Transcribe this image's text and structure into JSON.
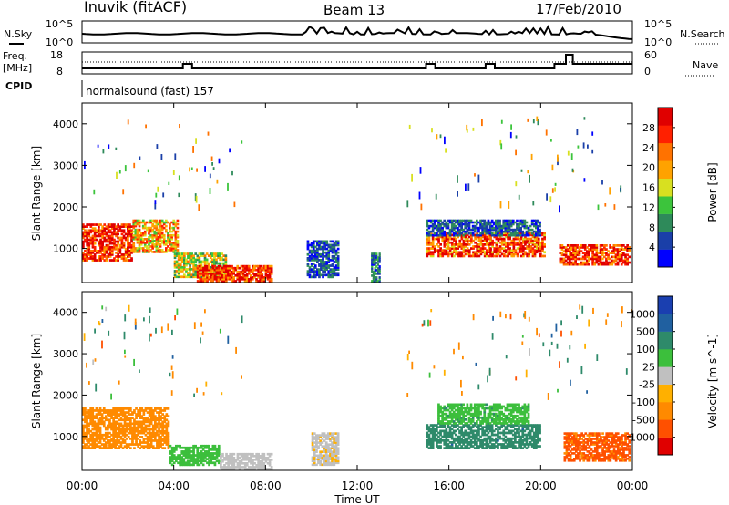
{
  "header": {
    "station": "Inuvik (fitACF)",
    "beam": "Beam 13",
    "date": "17/Feb/2010"
  },
  "aux_panels": {
    "nsky_label": "N.Sky",
    "nsky_ticks": [
      "10^5",
      "10^0"
    ],
    "nsearch_label": "N.Search",
    "nsearch_ticks": [
      "10^5",
      "10^0"
    ],
    "freq_label": "Freq.",
    "freq_unit": "[MHz]",
    "freq_ticks": [
      "18",
      "8"
    ],
    "nave_label": "Nave",
    "nave_ticks": [
      "60",
      "0"
    ],
    "cpid_label": "CPID",
    "cpid_text": "normalsound (fast) 157"
  },
  "colors": {
    "power_scale": [
      "#0000ff",
      "#1a3fa8",
      "#2e8a5a",
      "#3cc43c",
      "#d8e020",
      "#ffa200",
      "#ff7200",
      "#ff2000",
      "#e00000"
    ],
    "velocity_scale": [
      "#1a3fb0",
      "#2060a0",
      "#2e8a6a",
      "#3cbf3c",
      "#c0c0c0",
      "#ffb000",
      "#ff8a00",
      "#ff5000",
      "#e00000"
    ]
  },
  "chart_data": [
    {
      "type": "heatmap",
      "name": "power",
      "ylabel": "Slant Range [km]",
      "xlabel": "",
      "ylim": [
        180,
        4500
      ],
      "y_ticks": [
        "4000",
        "3000",
        "2000",
        "1000"
      ],
      "x_ticks": [
        "00:00",
        "04:00",
        "08:00",
        "12:00",
        "16:00",
        "20:00",
        "00:00"
      ],
      "colorbar_title": "Power [dB]",
      "colorbar_ticks": [
        "28",
        "24",
        "20",
        "16",
        "12",
        "8",
        "4"
      ],
      "series_blobs": [
        {
          "t": [
            0.0,
            2.2
          ],
          "r": [
            700,
            1600
          ],
          "value": 28
        },
        {
          "t": [
            2.2,
            4.2
          ],
          "r": [
            900,
            1700
          ],
          "value": 20
        },
        {
          "t": [
            4.0,
            6.3
          ],
          "r": [
            300,
            900
          ],
          "value": 16
        },
        {
          "t": [
            5.0,
            8.3
          ],
          "r": [
            200,
            600
          ],
          "value": 28
        },
        {
          "t": [
            9.8,
            11.2
          ],
          "r": [
            300,
            1200
          ],
          "value": 6
        },
        {
          "t": [
            12.6,
            13.0
          ],
          "r": [
            200,
            900
          ],
          "value": 8
        },
        {
          "t": [
            15.0,
            20.2
          ],
          "r": [
            800,
            1400
          ],
          "value": 26
        },
        {
          "t": [
            15.0,
            20.0
          ],
          "r": [
            1300,
            1700
          ],
          "value": 6
        },
        {
          "t": [
            20.8,
            23.9
          ],
          "r": [
            600,
            1100
          ],
          "value": 28
        }
      ]
    },
    {
      "type": "heatmap",
      "name": "velocity",
      "ylabel": "Slant Range [km]",
      "xlabel": "Time UT",
      "ylim": [
        180,
        4500
      ],
      "y_ticks": [
        "4000",
        "3000",
        "2000",
        "1000"
      ],
      "x_ticks": [
        "00:00",
        "04:00",
        "08:00",
        "12:00",
        "16:00",
        "20:00",
        "00:00"
      ],
      "colorbar_title": "Velocity [m s^-1]",
      "colorbar_ticks": [
        "1000",
        "500",
        "100",
        "25",
        "-25",
        "-100",
        "-500",
        "-1000"
      ],
      "series_blobs": [
        {
          "t": [
            0.0,
            3.8
          ],
          "r": [
            700,
            1700
          ],
          "value": -300
        },
        {
          "t": [
            3.8,
            6.0
          ],
          "r": [
            300,
            800
          ],
          "value": 60
        },
        {
          "t": [
            6.0,
            8.3
          ],
          "r": [
            200,
            600
          ],
          "value": 10
        },
        {
          "t": [
            10.0,
            11.2
          ],
          "r": [
            300,
            1100
          ],
          "value": -20
        },
        {
          "t": [
            15.0,
            20.0
          ],
          "r": [
            700,
            1300
          ],
          "value": 400
        },
        {
          "t": [
            15.5,
            19.5
          ],
          "r": [
            1300,
            1800
          ],
          "value": 80
        },
        {
          "t": [
            21.0,
            23.9
          ],
          "r": [
            400,
            1100
          ],
          "value": -600
        }
      ]
    }
  ]
}
